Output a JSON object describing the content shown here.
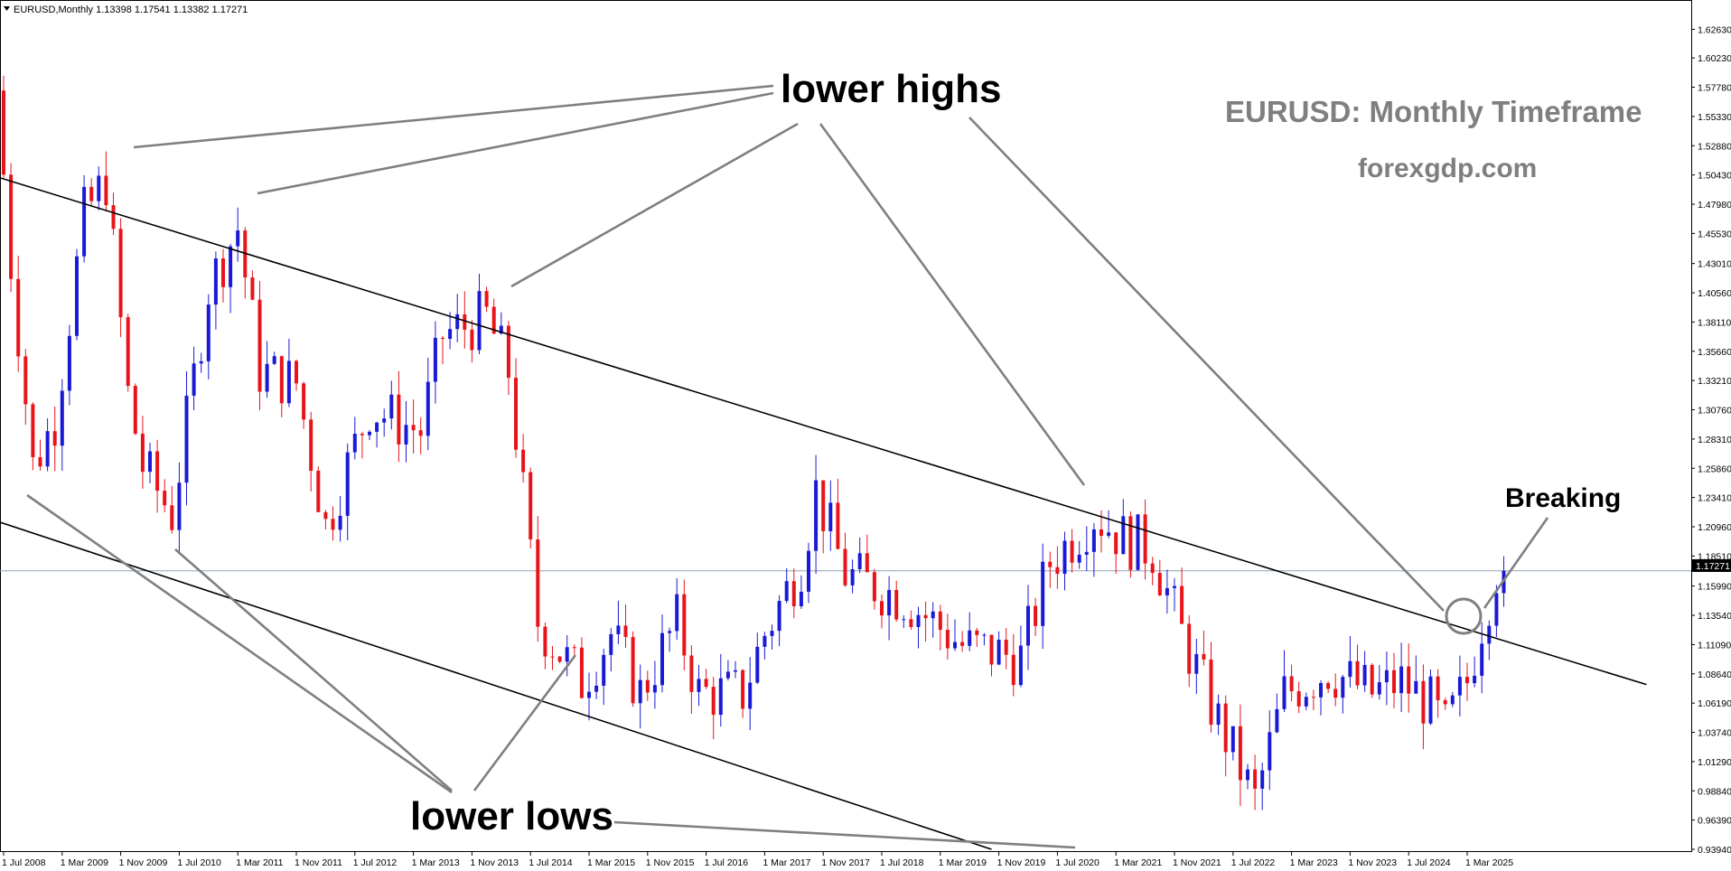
{
  "chart_data": {
    "type": "candlestick",
    "symbol_info": "EURUSD,Monthly  1.13398 1.17541 1.13382 1.17271",
    "watermark_title": "EURUSD: Monthly Timeframe",
    "watermark_site": "forexgdp.com",
    "annotations": {
      "lower_highs": "lower highs",
      "lower_lows": "lower lows",
      "breaking": "Breaking"
    },
    "current_price_label": "1.17271",
    "current_price": 1.17271,
    "ylim": [
      0.9394,
      1.6395
    ],
    "y_ticks": [
      "1.62630",
      "1.60230",
      "1.57780",
      "1.55330",
      "1.52880",
      "1.50430",
      "1.47980",
      "1.45530",
      "1.43010",
      "1.40560",
      "1.38110",
      "1.35660",
      "1.33210",
      "1.30760",
      "1.28310",
      "1.25860",
      "1.23410",
      "1.20960",
      "1.18510",
      "1.15990",
      "1.13540",
      "1.11090",
      "1.08640",
      "1.06190",
      "1.03740",
      "1.01290",
      "0.98840",
      "0.96390",
      "0.93940"
    ],
    "x_ticks": [
      "1 Jul 2008",
      "1 Mar 2009",
      "1 Nov 2009",
      "1 Jul 2010",
      "1 Mar 2011",
      "1 Nov 2011",
      "1 Jul 2012",
      "1 Mar 2013",
      "1 Nov 2013",
      "1 Jul 2014",
      "1 Mar 2015",
      "1 Nov 2015",
      "1 Jul 2016",
      "1 Mar 2017",
      "1 Nov 2017",
      "1 Jul 2018",
      "1 Mar 2019",
      "1 Nov 2019",
      "1 Jul 2020",
      "1 Mar 2021",
      "1 Nov 2021",
      "1 Jul 2022",
      "1 Mar 2023",
      "1 Nov 2023",
      "1 Jul 2024",
      "1 Mar 2025"
    ],
    "x_tick_bar_index": [
      0,
      8,
      16,
      24,
      32,
      40,
      48,
      56,
      64,
      72,
      80,
      88,
      96,
      104,
      112,
      120,
      128,
      136,
      144,
      152,
      160,
      168,
      176,
      184,
      192,
      200
    ],
    "trendlines": {
      "upper": {
        "from": [
          -9.3,
          1.5185
        ],
        "to": [
          224.5,
          1.0774
        ]
      },
      "lower": {
        "from": [
          -19.1,
          1.251
        ],
        "to": [
          135.0,
          0.9394
        ]
      }
    },
    "colors": {
      "bull": "#1a1ad6",
      "bear": "#e8141a",
      "trendline": "#000000",
      "pointer": "#7f7f7f",
      "price_line": "#8fa3b8"
    }
  }
}
